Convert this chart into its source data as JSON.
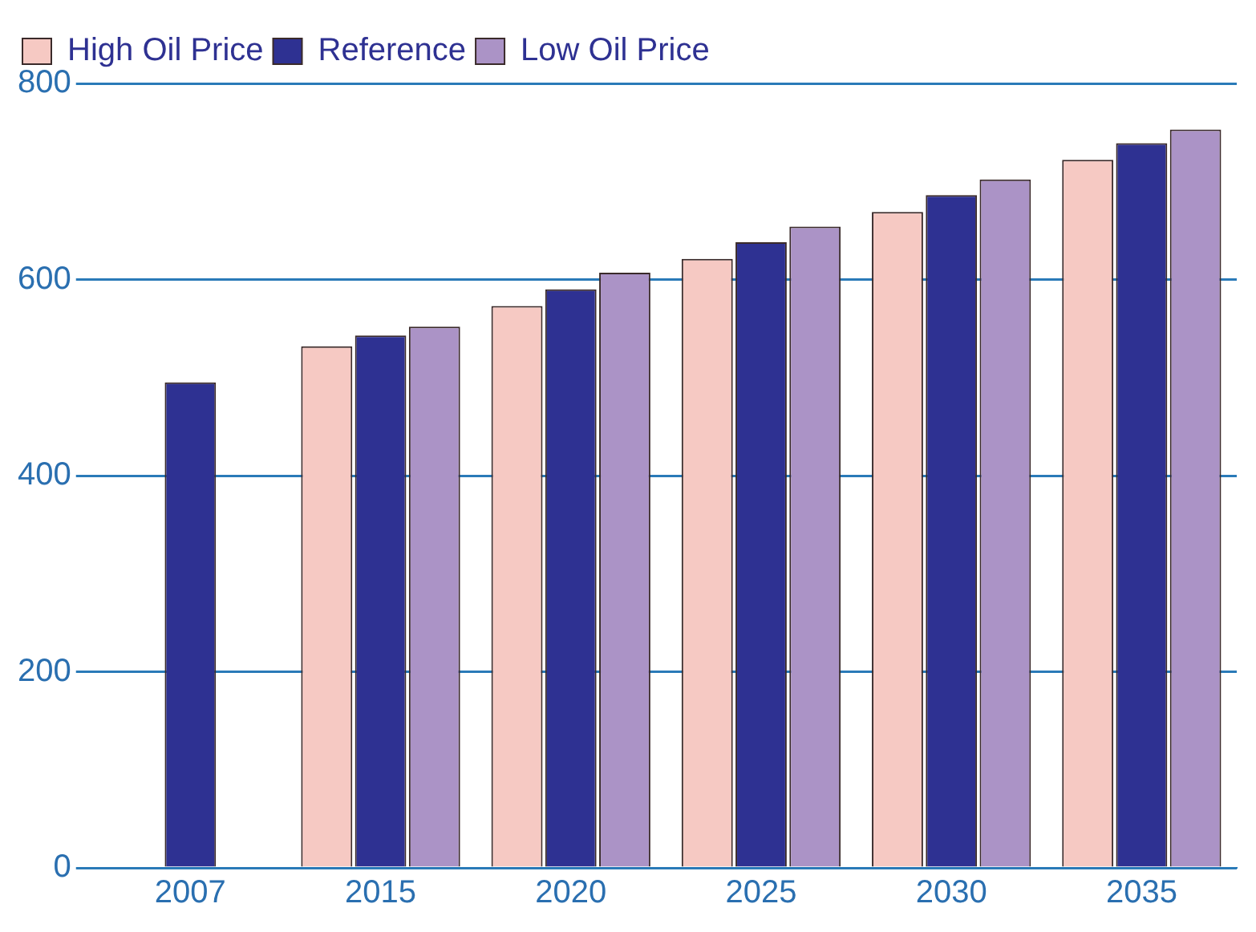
{
  "chart_data": {
    "type": "bar",
    "categories": [
      "2007",
      "2015",
      "2020",
      "2025",
      "2030",
      "2035"
    ],
    "series": [
      {
        "name": "High Oil Price",
        "color": "#f6c9c3",
        "values": [
          null,
          532,
          573,
          621,
          669,
          722
        ]
      },
      {
        "name": "Reference",
        "color": "#2e3192",
        "values": [
          495,
          543,
          590,
          638,
          686,
          739
        ]
      },
      {
        "name": "Low Oil Price",
        "color": "#ab93c6",
        "values": [
          null,
          552,
          607,
          654,
          702,
          753
        ]
      }
    ],
    "ylim": [
      0,
      800
    ],
    "yticks": [
      0,
      200,
      400,
      600,
      800
    ],
    "grid": "y",
    "legend": "top left"
  }
}
